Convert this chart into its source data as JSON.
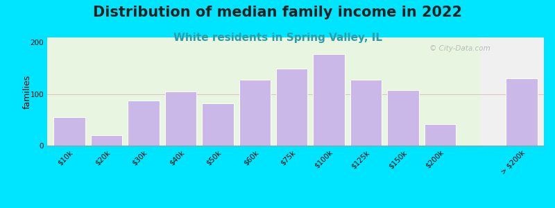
{
  "title": "Distribution of median family income in 2022",
  "subtitle": "White residents in Spring Valley, IL",
  "ylabel": "families",
  "categories": [
    "$10k",
    "$20k",
    "$30k",
    "$40k",
    "$50k",
    "$60k",
    "$75k",
    "$100k",
    "$125k",
    "$150k",
    "$200k",
    "> $200k"
  ],
  "values": [
    55,
    20,
    88,
    105,
    82,
    128,
    150,
    178,
    128,
    108,
    42,
    130
  ],
  "bar_color": "#c9b8e8",
  "bar_edgecolor": "#ffffff",
  "background_outer": "#00e5ff",
  "bg_left_color": "#e8f5e0",
  "bg_right_color": "#f0f0f0",
  "title_fontsize": 15,
  "subtitle_fontsize": 11,
  "title_color": "#222222",
  "subtitle_color": "#2a9da8",
  "ylabel_fontsize": 9,
  "tick_fontsize": 7.5,
  "ylim": [
    0,
    210
  ],
  "yticks": [
    0,
    100,
    200
  ],
  "watermark": "© City-Data.com",
  "bg_split_index": 10
}
